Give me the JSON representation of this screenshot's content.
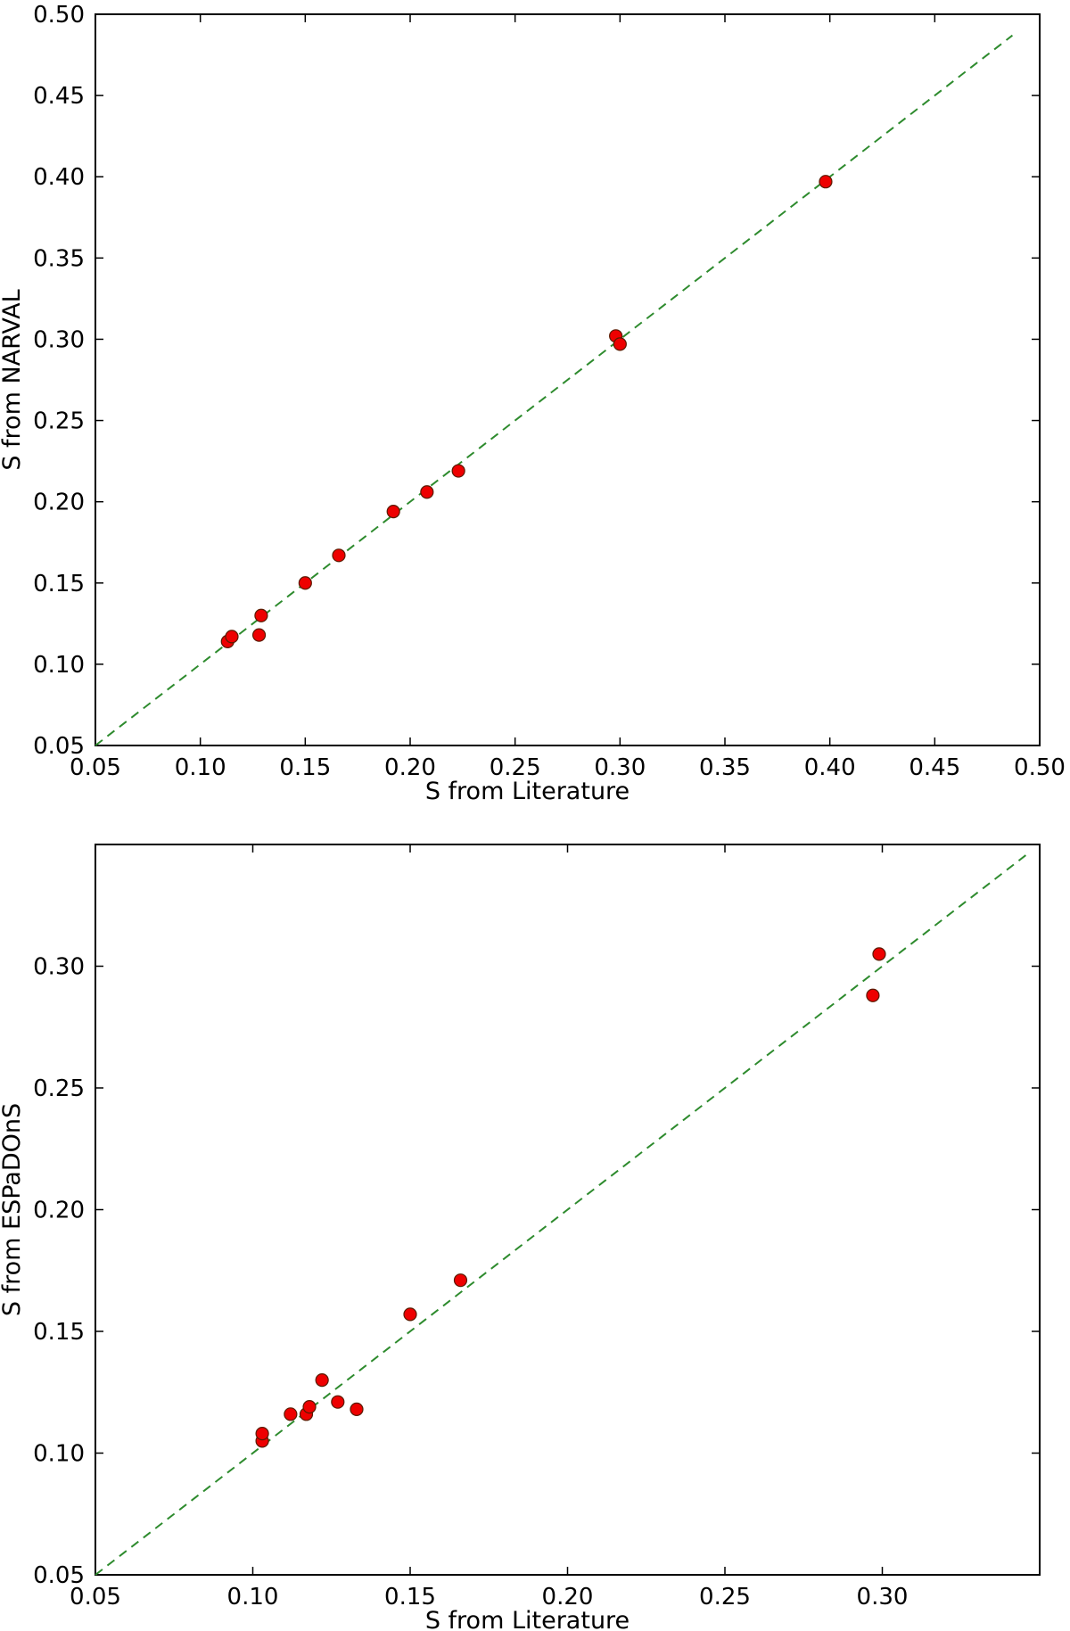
{
  "chart_data": [
    {
      "type": "scatter",
      "title": "",
      "xlabel": "S from Literature",
      "ylabel": "S from NARVAL",
      "xlim": [
        0.05,
        0.5
      ],
      "ylim": [
        0.05,
        0.5
      ],
      "xticks": [
        "0.05",
        "0.10",
        "0.15",
        "0.20",
        "0.25",
        "0.30",
        "0.35",
        "0.40",
        "0.45",
        "0.50"
      ],
      "yticks": [
        "0.05",
        "0.10",
        "0.15",
        "0.20",
        "0.25",
        "0.30",
        "0.35",
        "0.40",
        "0.45",
        "0.50"
      ],
      "grid": false,
      "reference_line": {
        "style": "dashed",
        "color": "#2e8b2e",
        "x": [
          0.05,
          0.487
        ],
        "y": [
          0.05,
          0.487
        ]
      },
      "points": [
        {
          "x": 0.113,
          "y": 0.114
        },
        {
          "x": 0.115,
          "y": 0.117
        },
        {
          "x": 0.128,
          "y": 0.118
        },
        {
          "x": 0.129,
          "y": 0.13
        },
        {
          "x": 0.15,
          "y": 0.15
        },
        {
          "x": 0.166,
          "y": 0.167
        },
        {
          "x": 0.192,
          "y": 0.194
        },
        {
          "x": 0.208,
          "y": 0.206
        },
        {
          "x": 0.223,
          "y": 0.219
        },
        {
          "x": 0.298,
          "y": 0.302
        },
        {
          "x": 0.3,
          "y": 0.297
        },
        {
          "x": 0.398,
          "y": 0.397
        }
      ],
      "marker_color": "#ee0000"
    },
    {
      "type": "scatter",
      "title": "",
      "xlabel": "S from Literature",
      "ylabel": "S from ESPaDOnS",
      "xlim": [
        0.05,
        0.35
      ],
      "ylim": [
        0.05,
        0.35
      ],
      "xticks": [
        "0.05",
        "0.10",
        "0.15",
        "0.20",
        "0.25",
        "0.30"
      ],
      "yticks": [
        "0.05",
        "0.10",
        "0.15",
        "0.20",
        "0.25",
        "0.30"
      ],
      "grid": false,
      "reference_line": {
        "style": "dashed",
        "color": "#2e8b2e",
        "x": [
          0.05,
          0.346
        ],
        "y": [
          0.05,
          0.346
        ]
      },
      "points": [
        {
          "x": 0.103,
          "y": 0.105
        },
        {
          "x": 0.103,
          "y": 0.108
        },
        {
          "x": 0.112,
          "y": 0.116
        },
        {
          "x": 0.117,
          "y": 0.116
        },
        {
          "x": 0.118,
          "y": 0.119
        },
        {
          "x": 0.122,
          "y": 0.13
        },
        {
          "x": 0.127,
          "y": 0.121
        },
        {
          "x": 0.133,
          "y": 0.118
        },
        {
          "x": 0.15,
          "y": 0.157
        },
        {
          "x": 0.166,
          "y": 0.171
        },
        {
          "x": 0.297,
          "y": 0.288
        },
        {
          "x": 0.299,
          "y": 0.305
        }
      ],
      "marker_color": "#ee0000"
    }
  ]
}
